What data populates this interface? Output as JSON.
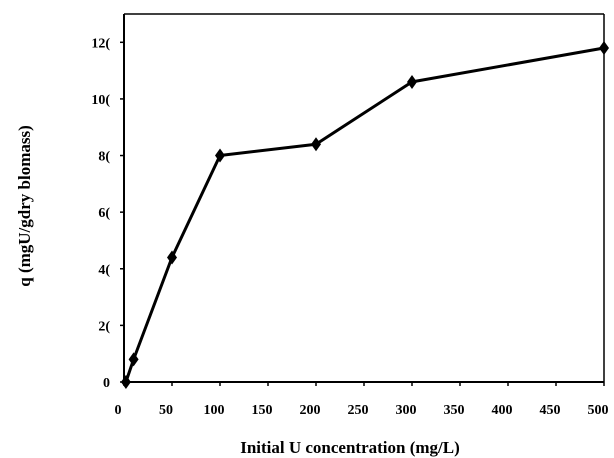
{
  "chart_data": {
    "type": "line",
    "xlabel": "Initial U concentration (mg/L)",
    "ylabel": "q (mgU/gdry blomass)",
    "xlim": [
      0,
      500
    ],
    "ylim": [
      0,
      130
    ],
    "x_ticks": [
      0,
      50,
      100,
      150,
      200,
      250,
      300,
      350,
      400,
      450,
      500
    ],
    "x_tick_labels": [
      "0",
      "50",
      "100",
      "150",
      "200",
      "250",
      "300",
      "350",
      "400",
      "450",
      "500"
    ],
    "y_ticks": [
      0,
      20,
      40,
      60,
      80,
      100,
      120
    ],
    "y_tick_labels": [
      "0",
      "2(",
      "4(",
      "6(",
      "8(",
      "10(",
      "12("
    ],
    "grid": false,
    "series": [
      {
        "x": [
          2,
          10,
          50,
          100,
          200,
          300,
          500
        ],
        "y": [
          0,
          8,
          44,
          80,
          84,
          106,
          118
        ],
        "color": "#000000",
        "marker": "diamond"
      }
    ]
  }
}
